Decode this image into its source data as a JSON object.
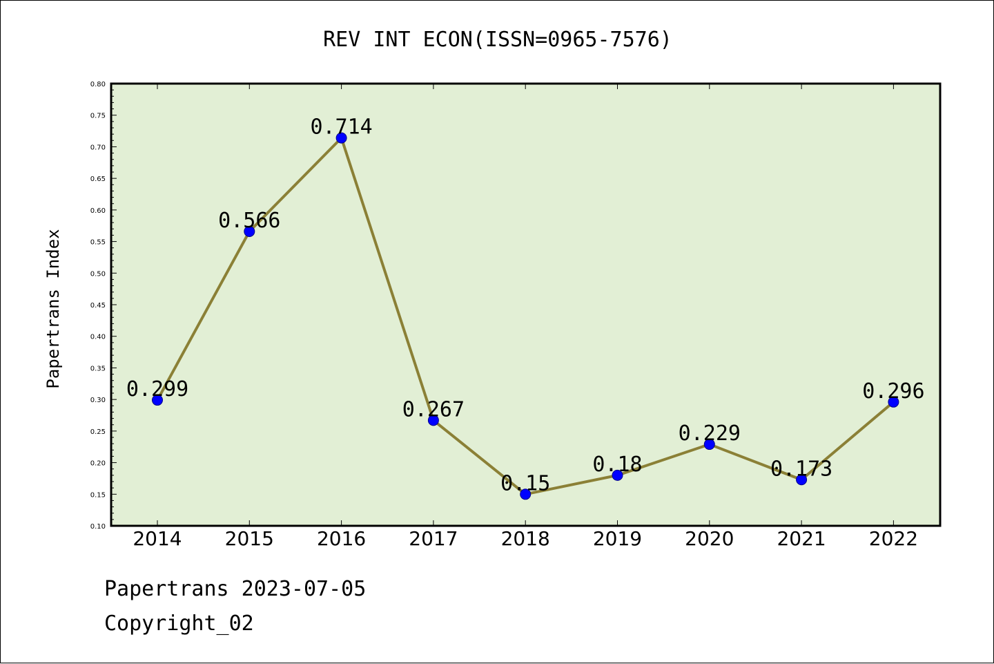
{
  "colors": {
    "plot_background": "#e2efd5",
    "line": "#8b8036",
    "marker": "#0000ff",
    "marker_edge": "#00008b",
    "frame": "#000000"
  },
  "chart_data": {
    "type": "line",
    "title": "REV INT ECON(ISSN=0965-7576)",
    "xlabel": "",
    "ylabel": "Papertrans Index",
    "categories": [
      "2014",
      "2015",
      "2016",
      "2017",
      "2018",
      "2019",
      "2020",
      "2021",
      "2022"
    ],
    "values": [
      0.299,
      0.566,
      0.714,
      0.267,
      0.15,
      0.18,
      0.229,
      0.173,
      0.296
    ],
    "data_labels": [
      "0.299",
      "0.566",
      "0.714",
      "0.267",
      "0.15",
      "0.18",
      "0.229",
      "0.173",
      "0.296"
    ],
    "ylim": [
      0.1,
      0.8
    ],
    "yticks": [
      "0.10",
      "0.15",
      "0.20",
      "0.25",
      "0.30",
      "0.35",
      "0.40",
      "0.45",
      "0.50",
      "0.55",
      "0.60",
      "0.65",
      "0.70",
      "0.75",
      "0.80"
    ],
    "grid": false,
    "legend": "none"
  },
  "footer": {
    "line1": "Papertrans 2023-07-05",
    "line2": "Copyright_02"
  }
}
